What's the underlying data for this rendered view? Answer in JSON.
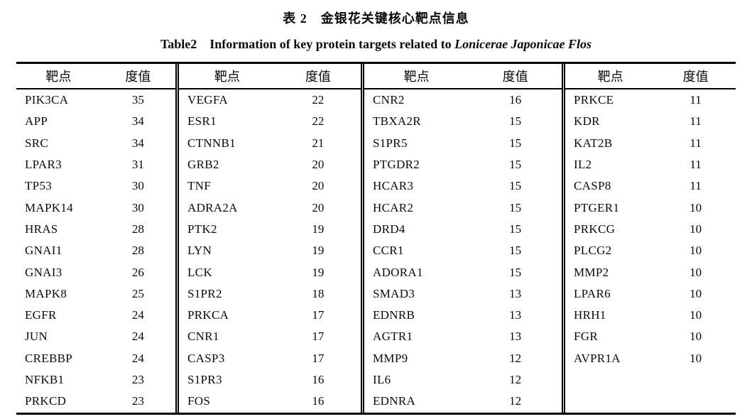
{
  "page": {
    "title_zh": "表 2　金银花关键核心靶点信息",
    "title_en_prefix": "Table2　Information of key protein targets related to ",
    "title_en_species": "Lonicerae Japonicae Flos"
  },
  "table": {
    "header": {
      "target": "靶点",
      "degree": "度值"
    },
    "groups": [
      {
        "rows": [
          {
            "target": "PIK3CA",
            "degree": 35
          },
          {
            "target": "APP",
            "degree": 34
          },
          {
            "target": "SRC",
            "degree": 34
          },
          {
            "target": "LPAR3",
            "degree": 31
          },
          {
            "target": "TP53",
            "degree": 30
          },
          {
            "target": "MAPK14",
            "degree": 30
          },
          {
            "target": "HRAS",
            "degree": 28
          },
          {
            "target": "GNAI1",
            "degree": 28
          },
          {
            "target": "GNAI3",
            "degree": 26
          },
          {
            "target": "MAPK8",
            "degree": 25
          },
          {
            "target": "EGFR",
            "degree": 24
          },
          {
            "target": "JUN",
            "degree": 24
          },
          {
            "target": "CREBBP",
            "degree": 24
          },
          {
            "target": "NFKB1",
            "degree": 23
          },
          {
            "target": "PRKCD",
            "degree": 23
          }
        ]
      },
      {
        "rows": [
          {
            "target": "VEGFA",
            "degree": 22
          },
          {
            "target": "ESR1",
            "degree": 22
          },
          {
            "target": "CTNNB1",
            "degree": 21
          },
          {
            "target": "GRB2",
            "degree": 20
          },
          {
            "target": "TNF",
            "degree": 20
          },
          {
            "target": "ADRA2A",
            "degree": 20
          },
          {
            "target": "PTK2",
            "degree": 19
          },
          {
            "target": "LYN",
            "degree": 19
          },
          {
            "target": "LCK",
            "degree": 19
          },
          {
            "target": "S1PR2",
            "degree": 18
          },
          {
            "target": "PRKCA",
            "degree": 17
          },
          {
            "target": "CNR1",
            "degree": 17
          },
          {
            "target": "CASP3",
            "degree": 17
          },
          {
            "target": "S1PR3",
            "degree": 16
          },
          {
            "target": "FOS",
            "degree": 16
          }
        ]
      },
      {
        "rows": [
          {
            "target": "CNR2",
            "degree": 16
          },
          {
            "target": "TBXA2R",
            "degree": 15
          },
          {
            "target": "S1PR5",
            "degree": 15
          },
          {
            "target": "PTGDR2",
            "degree": 15
          },
          {
            "target": "HCAR3",
            "degree": 15
          },
          {
            "target": "HCAR2",
            "degree": 15
          },
          {
            "target": "DRD4",
            "degree": 15
          },
          {
            "target": "CCR1",
            "degree": 15
          },
          {
            "target": "ADORA1",
            "degree": 15
          },
          {
            "target": "SMAD3",
            "degree": 13
          },
          {
            "target": "EDNRB",
            "degree": 13
          },
          {
            "target": "AGTR1",
            "degree": 13
          },
          {
            "target": "MMP9",
            "degree": 12
          },
          {
            "target": "IL6",
            "degree": 12
          },
          {
            "target": "EDNRA",
            "degree": 12
          }
        ]
      },
      {
        "rows": [
          {
            "target": "PRKCE",
            "degree": 11
          },
          {
            "target": "KDR",
            "degree": 11
          },
          {
            "target": "KAT2B",
            "degree": 11
          },
          {
            "target": "IL2",
            "degree": 11
          },
          {
            "target": "CASP8",
            "degree": 11
          },
          {
            "target": "PTGER1",
            "degree": 10
          },
          {
            "target": "PRKCG",
            "degree": 10
          },
          {
            "target": "PLCG2",
            "degree": 10
          },
          {
            "target": "MMP2",
            "degree": 10
          },
          {
            "target": "LPAR6",
            "degree": 10
          },
          {
            "target": "HRH1",
            "degree": 10
          },
          {
            "target": "FGR",
            "degree": 10
          },
          {
            "target": "AVPR1A",
            "degree": 10
          }
        ]
      }
    ]
  }
}
